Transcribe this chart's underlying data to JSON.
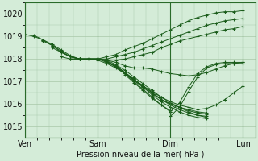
{
  "bg_color": "#d4ecd8",
  "grid_color": "#a8c8a8",
  "line_color": "#1a5c1a",
  "marker_color": "#1a5c1a",
  "xlabel": "Pression niveau de la mer( hPa )",
  "ylim": [
    1014.5,
    1020.5
  ],
  "yticks": [
    1015,
    1016,
    1017,
    1018,
    1019,
    1020
  ],
  "xtick_labels": [
    "Ven",
    "Sam",
    "Dim",
    "Lun"
  ],
  "xtick_positions": [
    0,
    48,
    96,
    144
  ],
  "total_hours": 152,
  "figsize": [
    3.2,
    2.0
  ],
  "dpi": 100,
  "series": [
    {
      "x": [
        0,
        6,
        12,
        18,
        24,
        30,
        36,
        42,
        48,
        54,
        60,
        66,
        72,
        78,
        84,
        90,
        96,
        102,
        108,
        114,
        120,
        126,
        132,
        138,
        144
      ],
      "y": [
        1019.1,
        1019.0,
        1018.85,
        1018.6,
        1018.3,
        1018.1,
        1018.0,
        1018.0,
        1018.0,
        1018.1,
        1018.2,
        1018.4,
        1018.55,
        1018.7,
        1018.9,
        1019.1,
        1019.3,
        1019.5,
        1019.7,
        1019.85,
        1019.95,
        1020.05,
        1020.1,
        1020.1,
        1020.15
      ]
    },
    {
      "x": [
        6,
        12,
        18,
        24,
        30,
        36,
        42,
        48,
        54,
        60,
        66,
        72,
        78,
        84,
        90,
        96,
        102,
        108,
        114,
        120,
        126,
        132,
        138,
        144
      ],
      "y": [
        1019.05,
        1018.85,
        1018.65,
        1018.4,
        1018.15,
        1018.0,
        1018.0,
        1018.0,
        1018.0,
        1018.1,
        1018.2,
        1018.3,
        1018.45,
        1018.6,
        1018.75,
        1018.9,
        1019.05,
        1019.2,
        1019.35,
        1019.5,
        1019.6,
        1019.7,
        1019.75,
        1019.8
      ]
    },
    {
      "x": [
        12,
        18,
        24,
        30,
        36,
        42,
        48,
        54,
        60,
        66,
        72,
        78,
        84,
        90,
        96,
        102,
        108,
        114,
        120,
        126,
        132,
        138,
        144
      ],
      "y": [
        1018.8,
        1018.6,
        1018.35,
        1018.1,
        1018.0,
        1018.0,
        1018.0,
        1017.95,
        1017.95,
        1018.0,
        1018.1,
        1018.2,
        1018.3,
        1018.5,
        1018.65,
        1018.8,
        1018.9,
        1019.0,
        1019.1,
        1019.2,
        1019.3,
        1019.35,
        1019.45
      ]
    },
    {
      "x": [
        18,
        24,
        30,
        36,
        42,
        48,
        54,
        60,
        66,
        72,
        78,
        84,
        90,
        96,
        102,
        108,
        114,
        120,
        126,
        132,
        138,
        144
      ],
      "y": [
        1018.5,
        1018.3,
        1018.1,
        1018.0,
        1018.0,
        1018.0,
        1017.95,
        1017.85,
        1017.7,
        1017.6,
        1017.6,
        1017.55,
        1017.45,
        1017.35,
        1017.3,
        1017.25,
        1017.3,
        1017.4,
        1017.55,
        1017.7,
        1017.8,
        1017.85
      ]
    },
    {
      "x": [
        24,
        30,
        36,
        42,
        48,
        54,
        60,
        66,
        72,
        78,
        84,
        90,
        96,
        102,
        108,
        114,
        120,
        126,
        132,
        138,
        144
      ],
      "y": [
        1018.1,
        1018.0,
        1018.0,
        1018.0,
        1017.95,
        1017.8,
        1017.6,
        1017.35,
        1017.1,
        1016.8,
        1016.55,
        1016.3,
        1016.1,
        1015.95,
        1015.85,
        1015.75,
        1015.8,
        1015.95,
        1016.2,
        1016.5,
        1016.8
      ]
    },
    {
      "x": [
        30,
        36,
        42,
        48,
        54,
        60,
        66,
        72,
        78,
        84,
        90,
        96,
        102,
        108,
        114,
        120
      ],
      "y": [
        1018.0,
        1018.0,
        1018.0,
        1018.0,
        1017.95,
        1017.75,
        1017.5,
        1017.2,
        1016.9,
        1016.6,
        1016.3,
        1016.05,
        1015.85,
        1015.65,
        1015.5,
        1015.4
      ]
    },
    {
      "x": [
        36,
        42,
        48,
        54,
        60,
        66,
        72,
        78,
        84,
        90,
        96,
        102,
        108,
        114,
        120
      ],
      "y": [
        1018.0,
        1018.0,
        1018.0,
        1017.9,
        1017.65,
        1017.35,
        1017.05,
        1016.75,
        1016.4,
        1016.1,
        1015.85,
        1015.65,
        1015.5,
        1015.4,
        1015.35
      ]
    },
    {
      "x": [
        42,
        48,
        54,
        60,
        66,
        72,
        78,
        84,
        90,
        96,
        102,
        108,
        114,
        120
      ],
      "y": [
        1018.0,
        1018.0,
        1017.9,
        1017.7,
        1017.4,
        1017.1,
        1016.8,
        1016.5,
        1016.2,
        1016.0,
        1015.85,
        1015.7,
        1015.6,
        1015.55
      ]
    },
    {
      "x": [
        48,
        54,
        60,
        66,
        72,
        78,
        84,
        90,
        96,
        102,
        108,
        114,
        120
      ],
      "y": [
        1018.0,
        1017.85,
        1017.65,
        1017.35,
        1017.05,
        1016.75,
        1016.45,
        1016.2,
        1015.95,
        1015.75,
        1015.6,
        1015.5,
        1015.45
      ]
    },
    {
      "x": [
        54,
        60,
        66,
        72,
        78,
        84,
        90,
        96,
        102,
        108,
        114,
        120
      ],
      "y": [
        1017.85,
        1017.7,
        1017.4,
        1017.1,
        1016.8,
        1016.5,
        1016.2,
        1016.0,
        1015.85,
        1015.75,
        1015.65,
        1015.6
      ]
    },
    {
      "x": [
        60,
        66,
        72,
        78,
        84,
        90,
        96
      ],
      "y": [
        1017.65,
        1017.35,
        1017.0,
        1016.65,
        1016.3,
        1015.95,
        1015.7
      ]
    },
    {
      "x": [
        66,
        72,
        78,
        84,
        90,
        96
      ],
      "y": [
        1017.3,
        1016.95,
        1016.6,
        1016.25,
        1015.95,
        1015.65
      ]
    },
    {
      "x": [
        96,
        102,
        108,
        114,
        120,
        126,
        132,
        138,
        144
      ],
      "y": [
        1015.65,
        1016.05,
        1016.75,
        1017.35,
        1017.65,
        1017.8,
        1017.85,
        1017.85,
        1017.85
      ]
    },
    {
      "x": [
        96,
        102,
        108,
        114,
        120,
        126,
        132,
        138,
        144
      ],
      "y": [
        1015.45,
        1015.85,
        1016.55,
        1017.2,
        1017.6,
        1017.75,
        1017.8,
        1017.8,
        1017.8
      ]
    }
  ]
}
